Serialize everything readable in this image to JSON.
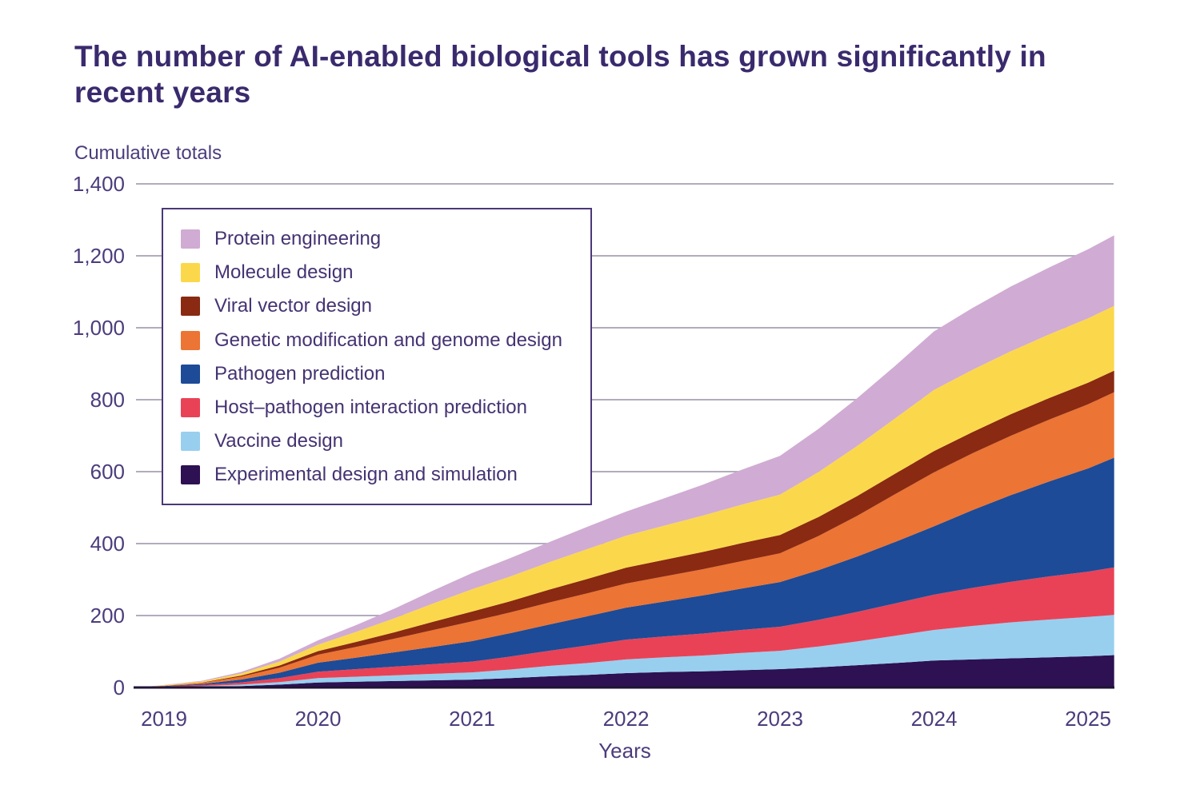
{
  "chart_data": {
    "type": "area",
    "stacked": true,
    "title": "The number of AI-enabled biological tools has grown significantly in recent years",
    "y_axis_title": "Cumulative totals",
    "xlabel": "Years",
    "ylabel": "Cumulative totals",
    "ylim": [
      0,
      1400
    ],
    "xlim": [
      2018.83,
      2025.17
    ],
    "grid": true,
    "legend_position": "upper-left-inside",
    "style_colors": {
      "background": "#ffffff",
      "title_text": "#3a2a6d",
      "axis_text": "#4c3c7c",
      "legend_text": "#453372",
      "gridline": "#a7a0b5",
      "axis_line": "#1e1337",
      "legend_border": "#4a3878"
    },
    "y_ticks": [
      {
        "value": 0,
        "label": "0"
      },
      {
        "value": 200,
        "label": "200"
      },
      {
        "value": 400,
        "label": "400"
      },
      {
        "value": 600,
        "label": "600"
      },
      {
        "value": 800,
        "label": "800"
      },
      {
        "value": 1000,
        "label": "1,000"
      },
      {
        "value": 1200,
        "label": "1,200"
      },
      {
        "value": 1400,
        "label": "1,400"
      }
    ],
    "x_ticks": [
      {
        "value": 2019,
        "label": "2019"
      },
      {
        "value": 2020,
        "label": "2020"
      },
      {
        "value": 2021,
        "label": "2021"
      },
      {
        "value": 2022,
        "label": "2022"
      },
      {
        "value": 2023,
        "label": "2023"
      },
      {
        "value": 2024,
        "label": "2024"
      },
      {
        "value": 2025,
        "label": "2025"
      }
    ],
    "x": [
      2018.83,
      2019,
      2019.25,
      2019.5,
      2019.75,
      2020,
      2020.25,
      2020.5,
      2020.75,
      2021,
      2021.25,
      2021.5,
      2021.75,
      2022,
      2022.25,
      2022.5,
      2022.75,
      2023,
      2023.25,
      2023.5,
      2023.75,
      2024,
      2024.25,
      2024.5,
      2024.75,
      2025,
      2025.17
    ],
    "series_bottom_to_top": [
      {
        "name": "Experimental design and simulation",
        "color": "#2d1152",
        "values": [
          0,
          1,
          2,
          4,
          8,
          14,
          16,
          18,
          20,
          22,
          26,
          31,
          35,
          40,
          43,
          45,
          48,
          51,
          56,
          62,
          68,
          75,
          78,
          81,
          84,
          87,
          90
        ]
      },
      {
        "name": "Vaccine design",
        "color": "#98cfef",
        "values": [
          0,
          1,
          2,
          4,
          7,
          12,
          14,
          16,
          18,
          20,
          24,
          29,
          33,
          38,
          41,
          44,
          48,
          51,
          58,
          66,
          76,
          85,
          93,
          100,
          105,
          109,
          112
        ]
      },
      {
        "name": "Host–pathogen interaction prediction",
        "color": "#e94256",
        "values": [
          0,
          1,
          3,
          6,
          11,
          18,
          21,
          24,
          27,
          30,
          36,
          42,
          49,
          55,
          58,
          61,
          64,
          67,
          74,
          82,
          90,
          98,
          106,
          113,
          120,
          126,
          132
        ]
      },
      {
        "name": "Pathogen prediction",
        "color": "#1d4b97",
        "values": [
          0,
          1,
          3,
          8,
          15,
          25,
          32,
          40,
          48,
          57,
          65,
          73,
          81,
          89,
          97,
          106,
          115,
          124,
          138,
          154,
          171,
          190,
          216,
          241,
          264,
          287,
          305
        ]
      },
      {
        "name": "Genetic modification and genome design",
        "color": "#ec7434",
        "values": [
          0,
          1,
          3,
          8,
          14,
          22,
          30,
          38,
          47,
          55,
          58,
          61,
          64,
          67,
          70,
          73,
          76,
          80,
          95,
          113,
          133,
          150,
          158,
          165,
          172,
          178,
          182
        ]
      },
      {
        "name": "Viral vector design",
        "color": "#8a2a12",
        "values": [
          0,
          0,
          1,
          3,
          6,
          10,
          14,
          18,
          23,
          27,
          31,
          36,
          40,
          44,
          46,
          48,
          50,
          51,
          53,
          55,
          57,
          59,
          59,
          60,
          60,
          60,
          60
        ]
      },
      {
        "name": "Molecule design",
        "color": "#fbd84b",
        "values": [
          0,
          1,
          3,
          6,
          11,
          18,
          28,
          39,
          51,
          62,
          69,
          76,
          83,
          89,
          95,
          101,
          107,
          112,
          125,
          139,
          154,
          170,
          173,
          175,
          177,
          179,
          180
        ]
      },
      {
        "name": "Protein engineering",
        "color": "#d0abd3",
        "values": [
          0,
          1,
          2,
          4,
          8,
          12,
          19,
          27,
          36,
          45,
          51,
          56,
          62,
          67,
          76,
          86,
          97,
          108,
          120,
          133,
          146,
          163,
          172,
          180,
          186,
          192,
          196
        ]
      }
    ]
  }
}
